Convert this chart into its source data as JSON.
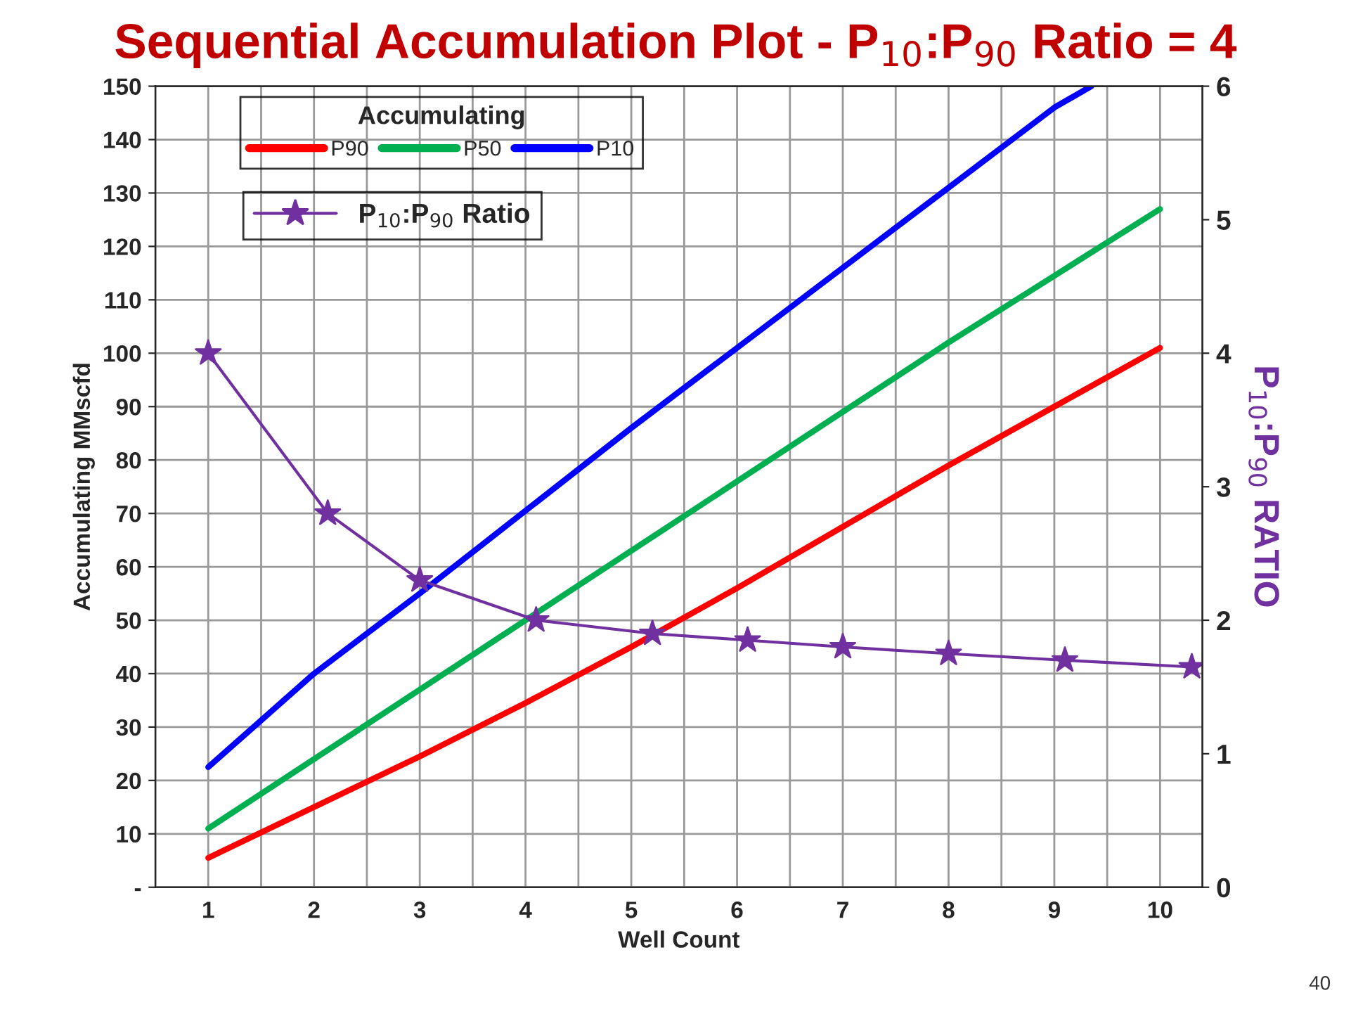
{
  "chart_data": {
    "type": "line",
    "title": "Sequential Accumulation Plot - P$_{10}$:P$_{90}$ Ratio = 4",
    "xlabel": "Well Count",
    "ylabel": "Accumulating MMscfd",
    "y2label": "P$_{10}$:P$_{90}$ RATIO",
    "legend_title": "Accumulating",
    "annotations": [
      "40"
    ],
    "x": [
      1,
      2,
      3,
      4,
      5,
      6,
      7,
      8,
      9,
      10
    ],
    "series": [
      {
        "name": "P90",
        "color": "#ff0000",
        "values": [
          5.5,
          15,
          24.5,
          34.5,
          45,
          56,
          67.5,
          79,
          90,
          101
        ]
      },
      {
        "name": "P50",
        "color": "#00b050",
        "values": [
          11,
          24,
          37,
          50,
          63,
          76,
          89,
          102,
          114.5,
          127
        ]
      },
      {
        "name": "P10",
        "color": "#0000ff",
        "x": [
          1,
          2,
          3,
          4,
          5,
          6,
          7,
          8,
          9,
          9.35
        ],
        "values": [
          22.5,
          40,
          55,
          70.5,
          86,
          101,
          116,
          131,
          146,
          150
        ]
      },
      {
        "name": "P$_{10}$:P$_{90}$ Ratio",
        "color": "#7030a0",
        "axis": "y2",
        "marker": "star",
        "x": [
          1,
          2.13,
          3,
          4.1,
          5.2,
          6.1,
          7,
          8,
          9.1,
          10.3
        ],
        "values": [
          4.0,
          2.8,
          2.3,
          2.0,
          1.9,
          1.85,
          1.8,
          1.75,
          1.7,
          1.65
        ]
      }
    ],
    "xlim": [
      0.5,
      10.4
    ],
    "xticks": [
      {
        "value": 0.5,
        "label": null
      },
      1,
      {
        "value": 1.5,
        "label": null
      },
      2,
      {
        "value": 2.5,
        "label": null
      },
      3,
      {
        "value": 3.5,
        "label": null
      },
      4,
      {
        "value": 4.5,
        "label": null
      },
      5,
      {
        "value": 5.5,
        "label": null
      },
      6,
      {
        "value": 6.5,
        "label": null
      },
      7,
      {
        "value": 7.5,
        "label": null
      },
      8,
      {
        "value": 8.5,
        "label": null
      },
      9,
      {
        "value": 9.5,
        "label": null
      },
      10
    ],
    "ylim": [
      0,
      150
    ],
    "yticks": [
      {
        "value": 0,
        "label": "-"
      },
      10,
      20,
      30,
      40,
      50,
      60,
      70,
      80,
      90,
      100,
      110,
      120,
      130,
      140,
      150
    ],
    "y2lim": [
      0,
      6
    ],
    "y2ticks": [
      0,
      1,
      2,
      3,
      4,
      5,
      6
    ],
    "grid": true,
    "legend": "top left",
    "line_style": "solid"
  }
}
